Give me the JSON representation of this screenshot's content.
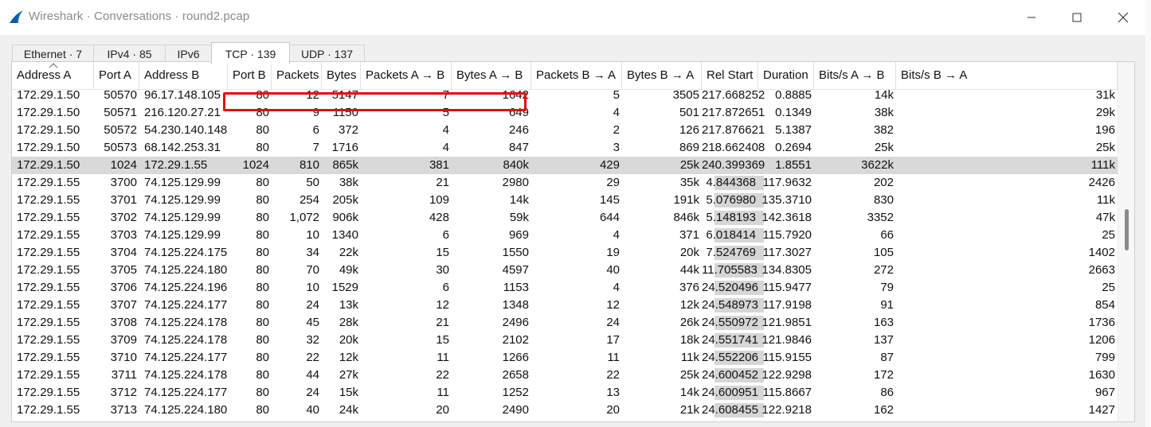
{
  "window": {
    "title": "Wireshark · Conversations · round2.pcap"
  },
  "tabs": [
    {
      "label": "Ethernet · 7"
    },
    {
      "label": "IPv4 · 85"
    },
    {
      "label": "IPv6"
    },
    {
      "label": "TCP · 139"
    },
    {
      "label": "UDP · 137"
    }
  ],
  "active_tab": "TCP · 139",
  "columns": [
    "Address A",
    "Port A",
    "Address B",
    "Port B",
    "Packets",
    "Bytes",
    "Packets A → B",
    "Bytes A → B",
    "Packets B → A",
    "Bytes B → A",
    "Rel Start",
    "Duration",
    "Bits/s A → B",
    "Bits/s B → A"
  ],
  "sorted_column": "Address A",
  "selected_row_index": 4,
  "rows": [
    [
      "172.29.1.50",
      "50570",
      "96.17.148.105",
      "80",
      "12",
      "5147",
      "7",
      "1642",
      "5",
      "3505",
      "217.668252",
      "0.8885",
      "14k",
      "31k"
    ],
    [
      "172.29.1.50",
      "50571",
      "216.120.27.21",
      "80",
      "9",
      "1150",
      "5",
      "649",
      "4",
      "501",
      "217.872651",
      "0.1349",
      "38k",
      "29k"
    ],
    [
      "172.29.1.50",
      "50572",
      "54.230.140.148",
      "80",
      "6",
      "372",
      "4",
      "246",
      "2",
      "126",
      "217.876621",
      "5.1387",
      "382",
      "196"
    ],
    [
      "172.29.1.50",
      "50573",
      "68.142.253.31",
      "80",
      "7",
      "1716",
      "4",
      "847",
      "3",
      "869",
      "218.662408",
      "0.2694",
      "25k",
      "25k"
    ],
    [
      "172.29.1.50",
      "1024",
      "172.29.1.55",
      "1024",
      "810",
      "865k",
      "381",
      "840k",
      "429",
      "25k",
      "240.399369",
      "1.8551",
      "3622k",
      "111k"
    ],
    [
      "172.29.1.55",
      "3700",
      "74.125.129.99",
      "80",
      "50",
      "38k",
      "21",
      "2980",
      "29",
      "35k",
      "4.844368",
      "117.9632",
      "202",
      "2426"
    ],
    [
      "172.29.1.55",
      "3701",
      "74.125.129.99",
      "80",
      "254",
      "205k",
      "109",
      "14k",
      "145",
      "191k",
      "5.076980",
      "135.3710",
      "830",
      "11k"
    ],
    [
      "172.29.1.55",
      "3702",
      "74.125.129.99",
      "80",
      "1,072",
      "906k",
      "428",
      "59k",
      "644",
      "846k",
      "5.148193",
      "142.3618",
      "3352",
      "47k"
    ],
    [
      "172.29.1.55",
      "3703",
      "74.125.129.99",
      "80",
      "10",
      "1340",
      "6",
      "969",
      "4",
      "371",
      "6.018414",
      "115.7920",
      "66",
      "25"
    ],
    [
      "172.29.1.55",
      "3704",
      "74.125.224.175",
      "80",
      "34",
      "22k",
      "15",
      "1550",
      "19",
      "20k",
      "7.524769",
      "117.3027",
      "105",
      "1402"
    ],
    [
      "172.29.1.55",
      "3705",
      "74.125.224.180",
      "80",
      "70",
      "49k",
      "30",
      "4597",
      "40",
      "44k",
      "11.705583",
      "134.8305",
      "272",
      "2663"
    ],
    [
      "172.29.1.55",
      "3706",
      "74.125.224.196",
      "80",
      "10",
      "1529",
      "6",
      "1153",
      "4",
      "376",
      "24.520496",
      "115.9477",
      "79",
      "25"
    ],
    [
      "172.29.1.55",
      "3707",
      "74.125.224.177",
      "80",
      "24",
      "13k",
      "12",
      "1348",
      "12",
      "12k",
      "24.548973",
      "117.9198",
      "91",
      "854"
    ],
    [
      "172.29.1.55",
      "3708",
      "74.125.224.178",
      "80",
      "45",
      "28k",
      "21",
      "2496",
      "24",
      "26k",
      "24.550972",
      "121.9851",
      "163",
      "1736"
    ],
    [
      "172.29.1.55",
      "3709",
      "74.125.224.178",
      "80",
      "32",
      "20k",
      "15",
      "2102",
      "17",
      "18k",
      "24.551741",
      "121.9846",
      "137",
      "1206"
    ],
    [
      "172.29.1.55",
      "3710",
      "74.125.224.177",
      "80",
      "22",
      "12k",
      "11",
      "1266",
      "11",
      "11k",
      "24.552206",
      "115.9155",
      "87",
      "799"
    ],
    [
      "172.29.1.55",
      "3711",
      "74.125.224.178",
      "80",
      "44",
      "27k",
      "22",
      "2658",
      "22",
      "25k",
      "24.600452",
      "122.9298",
      "172",
      "1630"
    ],
    [
      "172.29.1.55",
      "3712",
      "74.125.224.177",
      "80",
      "24",
      "15k",
      "11",
      "1252",
      "13",
      "14k",
      "24.600951",
      "115.8667",
      "86",
      "967"
    ],
    [
      "172.29.1.55",
      "3713",
      "74.125.224.180",
      "80",
      "40",
      "24k",
      "20",
      "2490",
      "20",
      "21k",
      "24.608455",
      "122.9218",
      "162",
      "1427"
    ]
  ],
  "colors": {
    "selected_row": "#d9d9d9",
    "highlight_box": "#e01010",
    "rel_start_bar": "#d6d6d6"
  }
}
